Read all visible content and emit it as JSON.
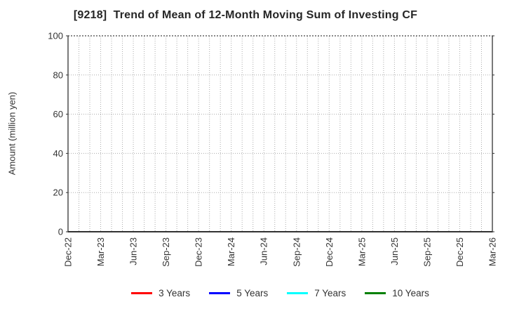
{
  "chart_data": {
    "type": "line",
    "title": "[9218]  Trend of Mean of 12-Month Moving Sum of Investing CF",
    "ylabel": "Amount (million yen)",
    "xlabel": "",
    "ylim": [
      0,
      100
    ],
    "yticks": [
      0,
      20,
      40,
      60,
      80,
      100
    ],
    "x_tick_labels": [
      "Dec-22",
      "Mar-23",
      "Jun-23",
      "Sep-23",
      "Dec-23",
      "Mar-24",
      "Jun-24",
      "Sep-24",
      "Dec-24",
      "Mar-25",
      "Jun-25",
      "Sep-25",
      "Dec-25",
      "Mar-26"
    ],
    "months_per_tick": 3,
    "grid": "dotted",
    "legend_position": "bottom",
    "series": [
      {
        "name": "3 Years",
        "color": "#ff0000",
        "values": []
      },
      {
        "name": "5 Years",
        "color": "#0000ff",
        "values": []
      },
      {
        "name": "7 Years",
        "color": "#00ffff",
        "values": []
      },
      {
        "name": "10 Years",
        "color": "#008000",
        "values": []
      }
    ],
    "colors": {
      "spine": "#333333",
      "grid": "#ababab",
      "tick_label": "#333333",
      "title": "#262626"
    }
  }
}
